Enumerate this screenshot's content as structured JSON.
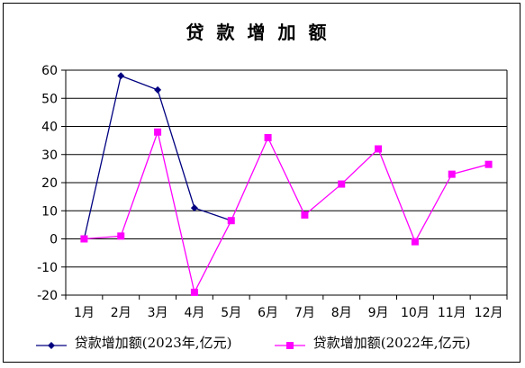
{
  "chart_data": {
    "type": "line",
    "title": "贷款增加额",
    "categories": [
      "1月",
      "2月",
      "3月",
      "4月",
      "5月",
      "6月",
      "7月",
      "8月",
      "9月",
      "10月",
      "11月",
      "12月"
    ],
    "ylim": [
      -20,
      60
    ],
    "yticks": [
      60,
      50,
      40,
      30,
      20,
      10,
      0,
      -10,
      -20
    ],
    "grid": true,
    "legend_position": "bottom",
    "series": [
      {
        "name": "贷款增加额(2023年,亿元)",
        "color": "#000080",
        "marker": "diamond",
        "values": [
          0,
          58,
          53,
          11,
          6.5,
          null,
          null,
          null,
          null,
          null,
          null,
          null
        ]
      },
      {
        "name": "贷款增加额(2022年,亿元)",
        "color": "#ff00ff",
        "marker": "square",
        "values": [
          0,
          1,
          38,
          -19,
          6.5,
          36,
          8.5,
          19.5,
          32,
          -1,
          23,
          26.5
        ]
      }
    ]
  }
}
